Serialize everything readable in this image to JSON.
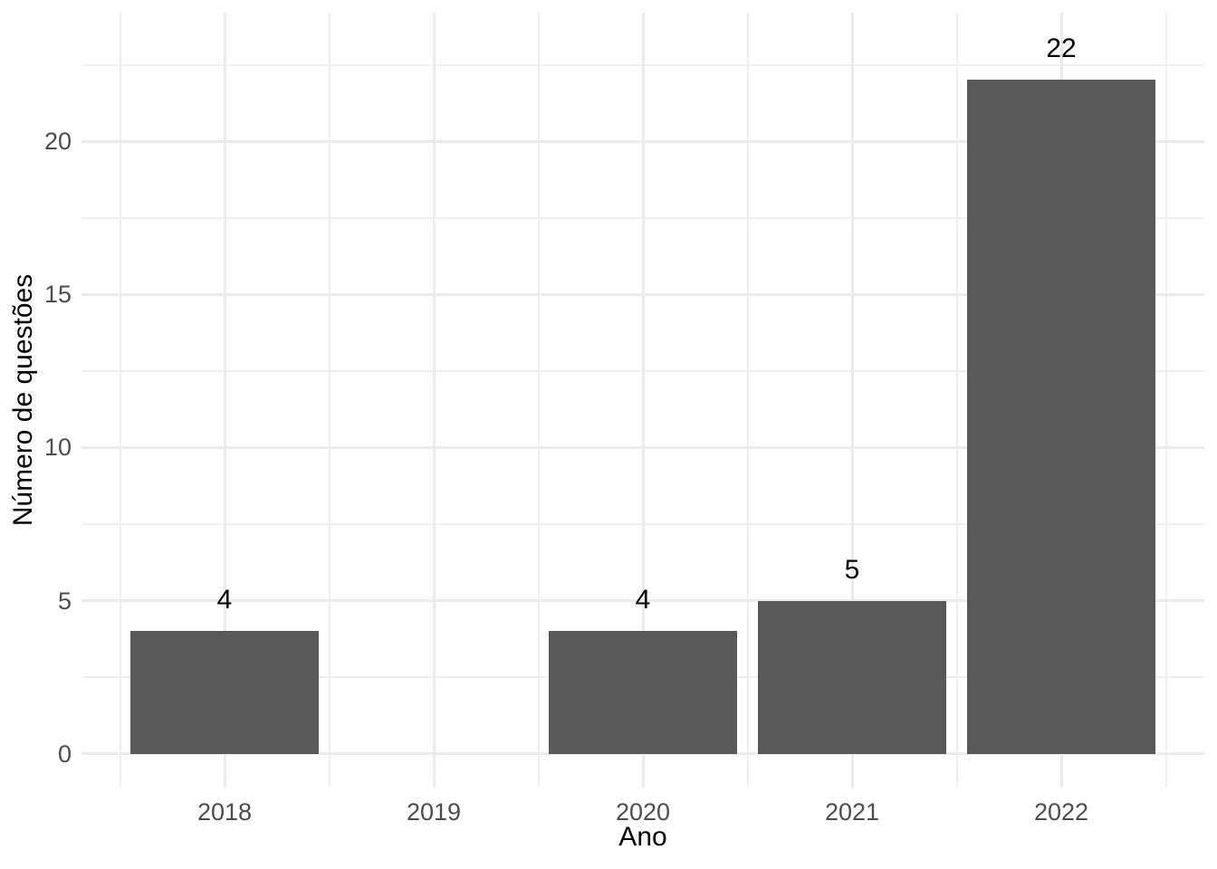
{
  "chart_data": {
    "type": "bar",
    "title": "",
    "xlabel": "Ano",
    "ylabel": "Número de questões",
    "categories": [
      "2018",
      "2019",
      "2020",
      "2021",
      "2022"
    ],
    "values": [
      4,
      0,
      4,
      5,
      22
    ],
    "bar_labels": [
      "4",
      "",
      "4",
      "5",
      "22"
    ],
    "y_ticks": [
      0,
      5,
      10,
      15,
      20
    ],
    "y_minor_ticks": [
      2.5,
      7.5,
      12.5,
      17.5,
      22.5
    ],
    "ylim": [
      -1.1,
      24.2
    ],
    "bar_width_fraction": 0.9,
    "grid": {
      "major": true,
      "minor": true
    },
    "legend": "none",
    "colors": {
      "bar_fill": "#595959",
      "grid_major": "#EBEBEB",
      "grid_minor": "#EFEFEF",
      "axis_text": "#4D4D4D",
      "title_text": "#000000",
      "label_text": "#000000",
      "background": "#FFFFFF"
    }
  }
}
